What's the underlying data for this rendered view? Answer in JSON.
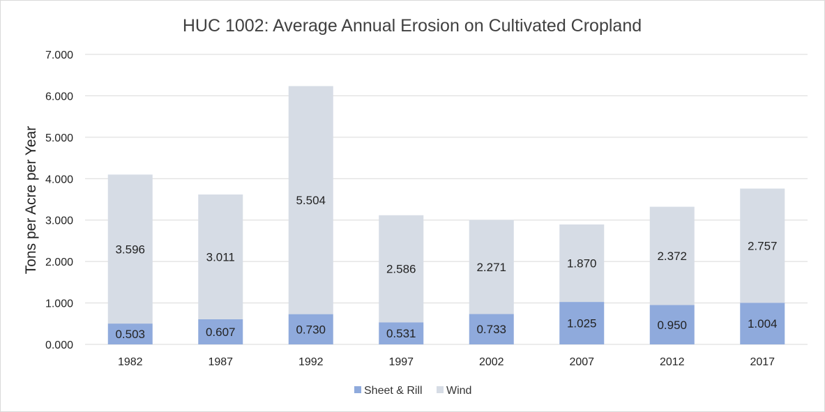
{
  "chart_data": {
    "type": "bar",
    "stacked": true,
    "title": "HUC 1002: Average Annual Erosion on Cultivated Cropland",
    "xlabel": "",
    "ylabel": "Tons per Acre per Year",
    "ylim": [
      0,
      7
    ],
    "yticks": [
      "0.000",
      "1.000",
      "2.000",
      "3.000",
      "4.000",
      "5.000",
      "6.000",
      "7.000"
    ],
    "grid": true,
    "legend_position": "bottom",
    "categories": [
      "1982",
      "1987",
      "1992",
      "1997",
      "2002",
      "2007",
      "2012",
      "2017"
    ],
    "series": [
      {
        "name": "Sheet & Rill",
        "color": "#8faadc",
        "values": [
          0.503,
          0.607,
          0.73,
          0.531,
          0.733,
          1.025,
          0.95,
          1.004
        ],
        "labels": [
          "0.503",
          "0.607",
          "0.730",
          "0.531",
          "0.733",
          "1.025",
          "0.950",
          "1.004"
        ]
      },
      {
        "name": "Wind",
        "color": "#d6dce5",
        "values": [
          3.596,
          3.011,
          5.504,
          2.586,
          2.271,
          1.87,
          2.372,
          2.757
        ],
        "labels": [
          "3.596",
          "3.011",
          "5.504",
          "2.586",
          "2.271",
          "1.870",
          "2.372",
          "2.757"
        ]
      }
    ]
  }
}
